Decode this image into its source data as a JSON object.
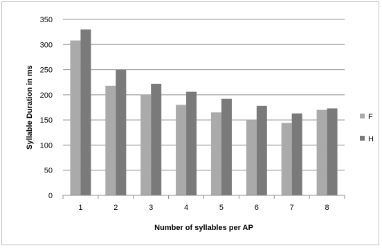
{
  "chart_data": {
    "type": "bar",
    "categories": [
      "1",
      "2",
      "3",
      "4",
      "5",
      "6",
      "7",
      "8"
    ],
    "series": [
      {
        "name": "F",
        "color": "#aaaaaa",
        "values": [
          308,
          218,
          200,
          180,
          165,
          150,
          144,
          170
        ]
      },
      {
        "name": "H",
        "color": "#7a7a7a",
        "values": [
          330,
          250,
          222,
          206,
          192,
          178,
          163,
          173
        ]
      }
    ],
    "xlabel": "Number of syllables  per AP",
    "ylabel": "Syllable Duration in ms",
    "ylim": [
      0,
      350
    ],
    "yticks": [
      "0",
      "50",
      "100",
      "150",
      "200",
      "250",
      "300",
      "350"
    ],
    "grid": true,
    "legend": "right"
  }
}
